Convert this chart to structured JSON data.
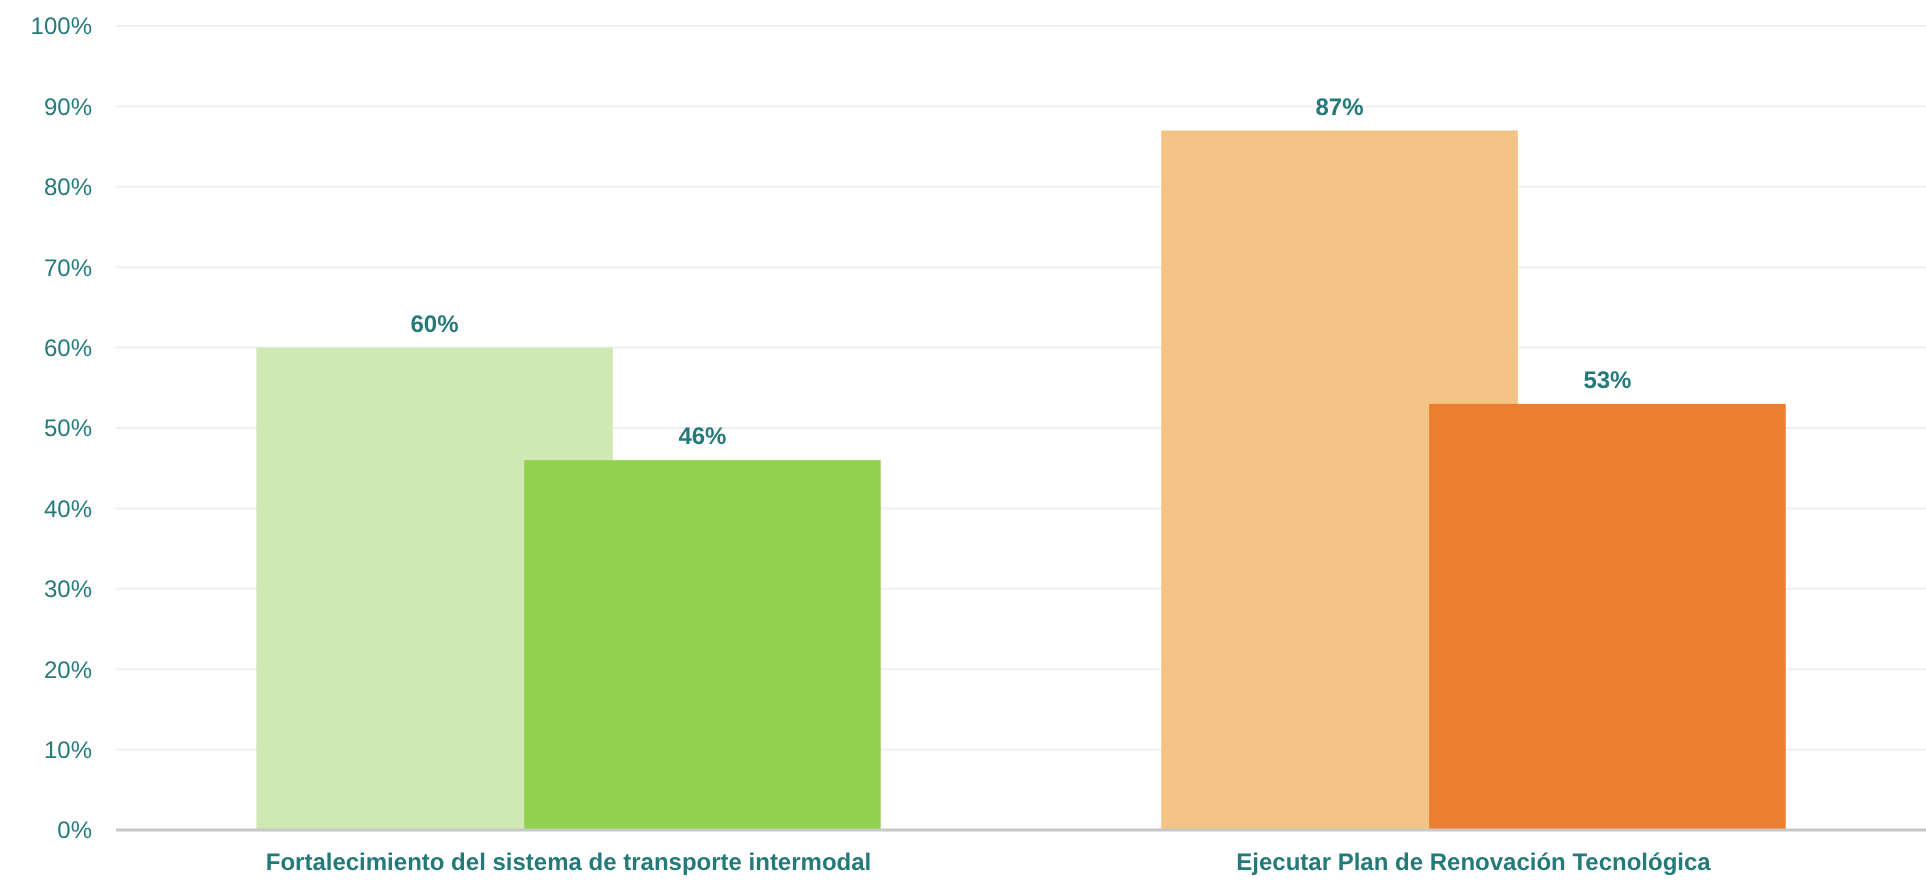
{
  "chart_data": {
    "type": "bar",
    "categories": [
      "Fortalecimiento del sistema de transporte intermodal",
      "Ejecutar Plan de Renovación Tecnológica"
    ],
    "series": [
      {
        "colors": [
          "#d0e9b4",
          "#f3c386"
        ],
        "values": [
          60,
          87
        ],
        "value_labels": [
          "60%",
          "87%"
        ]
      },
      {
        "colors": [
          "#92d050",
          "#ed7d31"
        ],
        "values": [
          46,
          53
        ],
        "value_labels": [
          "46%",
          "53%"
        ]
      }
    ],
    "ylim": [
      0,
      100
    ],
    "yticks": [
      {
        "value": 0,
        "label": "0%"
      },
      {
        "value": 10,
        "label": "10%"
      },
      {
        "value": 20,
        "label": "20%"
      },
      {
        "value": 30,
        "label": "30%"
      },
      {
        "value": 40,
        "label": "40%"
      },
      {
        "value": 50,
        "label": "50%"
      },
      {
        "value": 60,
        "label": "60%"
      },
      {
        "value": 70,
        "label": "70%"
      },
      {
        "value": 80,
        "label": "80%"
      },
      {
        "value": 90,
        "label": "90%"
      },
      {
        "value": 100,
        "label": "100%"
      }
    ],
    "grid": "y"
  }
}
